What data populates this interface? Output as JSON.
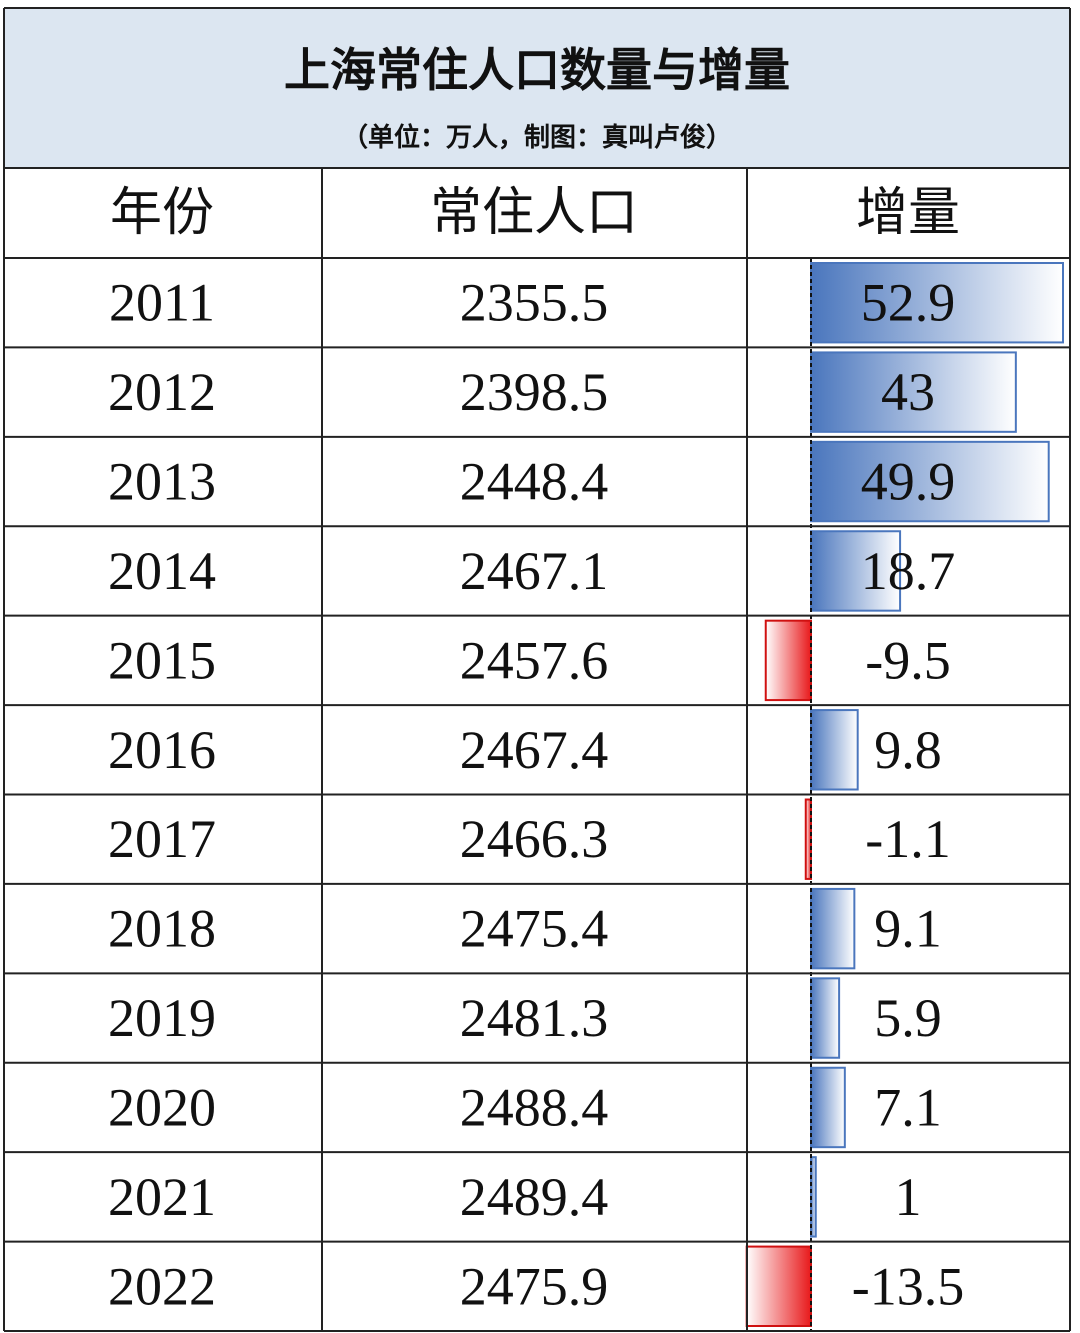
{
  "table": {
    "title": "上海常住人口数量与增量",
    "subtitle": "（单位：万人，制图：真叫卢俊）",
    "headers": [
      "年份",
      "常住人口",
      "增量"
    ],
    "rows": [
      [
        2011,
        2355.5,
        52.9
      ],
      [
        2012,
        2398.5,
        43
      ],
      [
        2013,
        2448.4,
        49.9
      ],
      [
        2014,
        2467.1,
        18.7
      ],
      [
        2015,
        2457.6,
        -9.5
      ],
      [
        2016,
        2467.4,
        9.8
      ],
      [
        2017,
        2466.3,
        -1.1
      ],
      [
        2018,
        2475.4,
        9.1
      ],
      [
        2019,
        2481.3,
        5.9
      ],
      [
        2020,
        2488.4,
        7.1
      ],
      [
        2021,
        2489.4,
        1
      ],
      [
        2022,
        2475.9,
        -13.5
      ]
    ]
  }
}
